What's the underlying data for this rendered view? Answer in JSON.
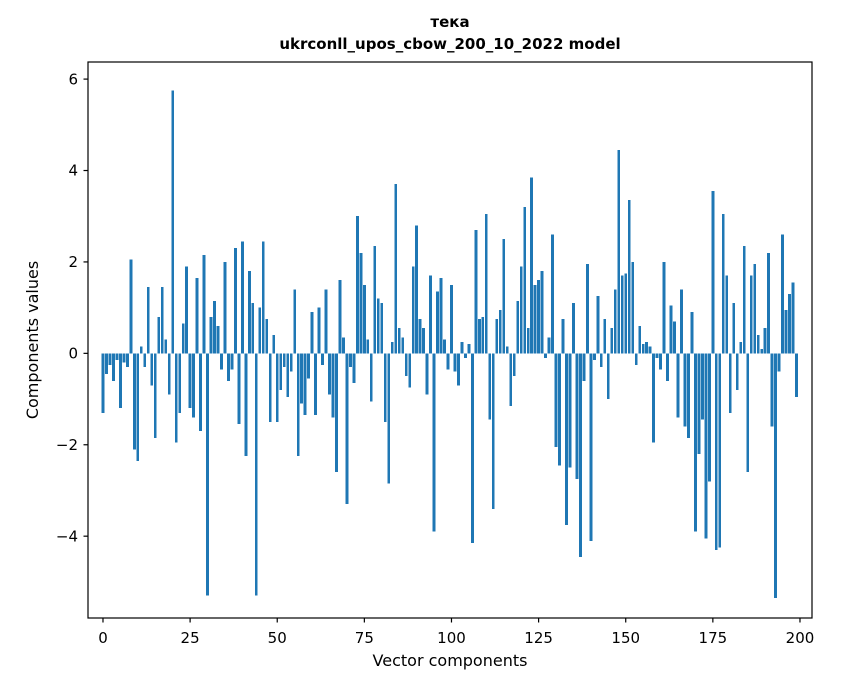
{
  "figure": {
    "title_line1": "тека",
    "title_line2": "ukrconll_upos_cbow_200_10_2022 model"
  },
  "chart_data": {
    "type": "bar",
    "title": "тека\nukrconll_upos_cbow_200_10_2022 model",
    "xlabel": "Vector components",
    "ylabel": "Components values",
    "bar_color": "#1f77b4",
    "axis_color": "#000000",
    "grid": false,
    "legend": null,
    "xticks": [
      0,
      25,
      50,
      75,
      100,
      125,
      150,
      175,
      200
    ],
    "yticks": [
      -4,
      -2,
      0,
      2,
      4,
      6
    ],
    "xlim": [
      -4.3,
      203.45
    ],
    "ylim": [
      -5.79,
      6.374
    ],
    "x_start": 0,
    "values": [
      -1.3,
      -0.45,
      -0.25,
      -0.6,
      -0.15,
      -1.2,
      -0.2,
      -0.3,
      2.05,
      -2.1,
      -2.35,
      0.15,
      -0.3,
      1.45,
      -0.7,
      -1.85,
      0.8,
      1.45,
      0.3,
      -0.9,
      5.75,
      -1.95,
      -1.3,
      0.65,
      1.9,
      -1.2,
      -1.4,
      1.65,
      -1.7,
      2.15,
      -5.3,
      0.8,
      1.15,
      0.6,
      -0.35,
      2.0,
      -0.6,
      -0.35,
      2.3,
      -1.55,
      2.45,
      -2.25,
      1.8,
      1.1,
      -5.3,
      1.0,
      2.45,
      0.75,
      -1.5,
      0.4,
      -1.5,
      -0.8,
      -0.3,
      -0.95,
      -0.4,
      1.4,
      -2.25,
      -1.1,
      -1.35,
      -0.55,
      0.9,
      -1.35,
      1.0,
      -0.25,
      1.4,
      -0.9,
      -1.4,
      -2.6,
      1.6,
      0.35,
      -3.3,
      -0.3,
      -0.65,
      3.0,
      2.2,
      1.5,
      0.3,
      -1.05,
      2.35,
      1.2,
      1.1,
      -1.5,
      -2.85,
      0.25,
      3.7,
      0.55,
      0.35,
      -0.5,
      -0.75,
      1.9,
      2.8,
      0.75,
      0.55,
      -0.9,
      1.7,
      -3.9,
      1.35,
      1.65,
      0.3,
      -0.35,
      1.5,
      -0.4,
      -0.7,
      0.25,
      -0.1,
      0.2,
      -4.15,
      2.7,
      0.75,
      0.8,
      3.05,
      -1.45,
      -3.4,
      0.75,
      0.95,
      2.5,
      0.15,
      -1.15,
      -0.5,
      1.15,
      1.9,
      3.2,
      0.55,
      3.85,
      1.5,
      1.6,
      1.8,
      -0.1,
      0.35,
      2.6,
      -2.05,
      -2.45,
      0.75,
      -3.75,
      -2.5,
      1.1,
      -2.75,
      -4.45,
      -0.6,
      1.95,
      -4.1,
      -0.15,
      1.25,
      -0.3,
      0.75,
      -1.0,
      0.55,
      1.4,
      4.45,
      1.7,
      1.75,
      3.35,
      2.0,
      -0.25,
      0.6,
      0.2,
      0.25,
      0.15,
      -1.95,
      -0.1,
      -0.35,
      2.0,
      -0.6,
      1.05,
      0.7,
      -1.4,
      1.4,
      -1.6,
      -1.85,
      0.9,
      -3.9,
      -2.2,
      -1.45,
      -4.05,
      -2.8,
      3.55,
      -4.3,
      -4.25,
      3.05,
      1.7,
      -1.3,
      1.1,
      -0.8,
      0.25,
      2.35,
      -2.6,
      1.7,
      1.95,
      0.4,
      0.1,
      0.55,
      2.2,
      -1.6,
      -5.35,
      -0.4,
      2.6,
      0.95,
      1.3,
      1.55,
      -0.95
    ]
  }
}
